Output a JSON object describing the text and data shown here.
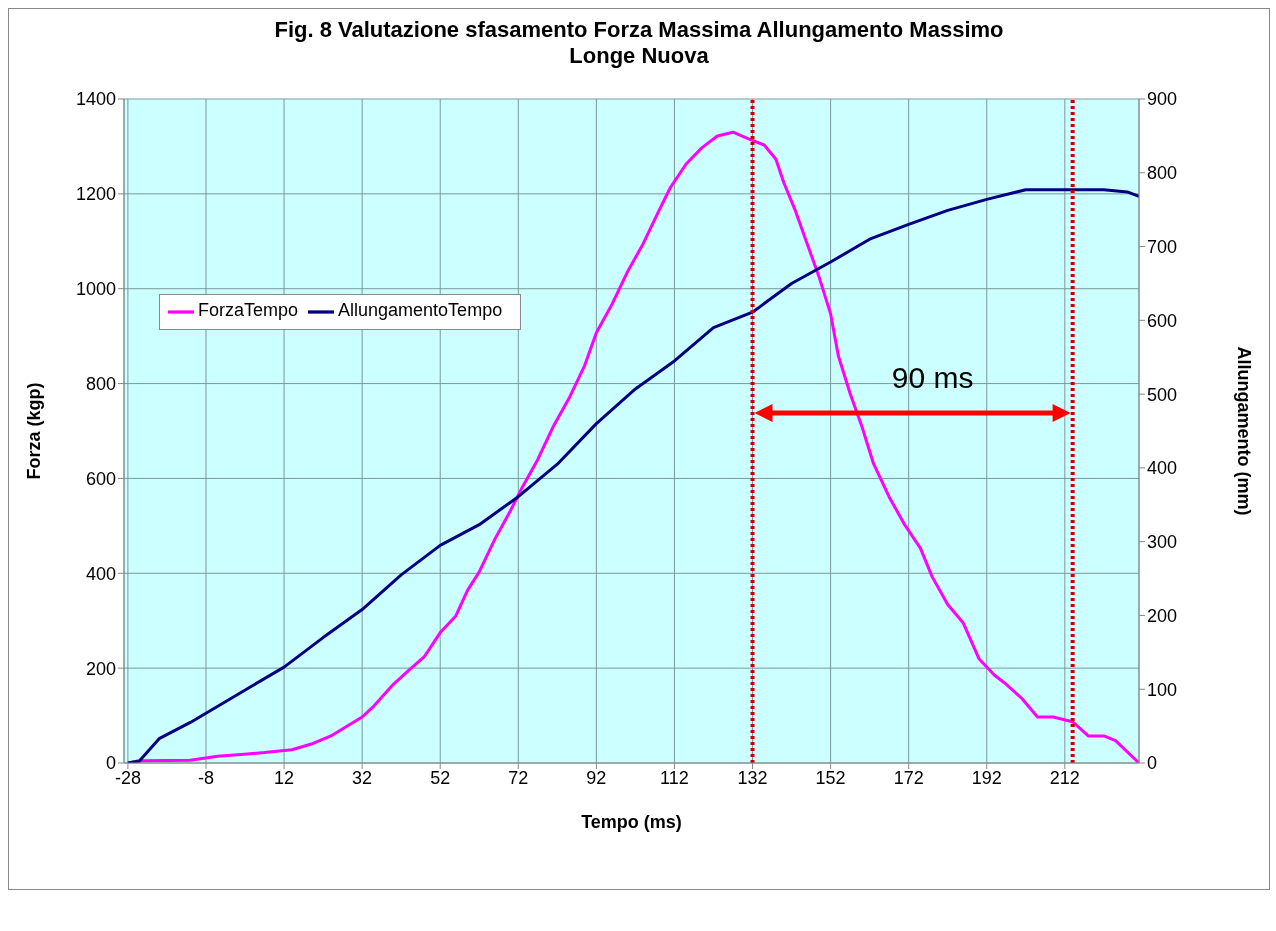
{
  "chart_data": {
    "type": "line",
    "title": "Fig. 8 Valutazione sfasamento Forza Massima Allungamento Massimo",
    "subtitle": "Longe Nuova",
    "xlabel": "Tempo (ms)",
    "ylabel": "Forza (kgp)",
    "y2label": "Allungamento (mm)",
    "xlim": [
      -29,
      231
    ],
    "xticks": [
      -28,
      -8,
      12,
      32,
      52,
      72,
      92,
      112,
      132,
      152,
      172,
      192,
      212
    ],
    "ylim": [
      0,
      1400
    ],
    "yticks": [
      0,
      200,
      400,
      600,
      800,
      1000,
      1200,
      1400
    ],
    "y2lim": [
      0,
      900
    ],
    "y2ticks": [
      0,
      100,
      200,
      300,
      400,
      500,
      600,
      700,
      800,
      900
    ],
    "grid": true,
    "legend": "top left",
    "marker": "none",
    "line_style": "solid",
    "series": [
      {
        "name": "ForzaTempo",
        "color": "#ff00ff",
        "x": [
          -28,
          -24,
          -12,
          -5,
          1,
          7,
          14,
          19,
          24,
          28,
          32,
          35,
          40,
          44,
          48,
          52,
          56,
          59,
          62,
          66,
          70,
          73,
          77,
          81,
          85,
          89,
          92,
          96,
          100,
          104,
          108,
          111,
          115,
          119,
          123,
          127,
          131,
          135,
          138,
          140,
          143,
          146,
          149,
          152,
          154,
          157,
          160,
          163,
          167,
          171,
          175,
          178,
          182,
          186,
          190,
          194,
          197,
          201,
          205,
          209,
          214,
          218,
          222,
          225,
          231
        ],
        "values": [
          0,
          5,
          6,
          14,
          18,
          22,
          28,
          40,
          57,
          77,
          97,
          120,
          166,
          196,
          225,
          275,
          310,
          364,
          403,
          472,
          532,
          581,
          640,
          710,
          769,
          838,
          907,
          967,
          1036,
          1095,
          1164,
          1214,
          1263,
          1297,
          1322,
          1330,
          1316,
          1303,
          1273,
          1224,
          1164,
          1095,
          1026,
          947,
          858,
          779,
          710,
          631,
          561,
          502,
          453,
          393,
          334,
          295,
          220,
          185,
          166,
          136,
          97,
          97,
          87,
          57,
          57,
          47,
          0
        ]
      },
      {
        "name": "AllungamentoTempo",
        "color": "#000080",
        "axis": "y2",
        "x": [
          -28,
          -25,
          -20,
          -12,
          -4,
          4,
          12,
          22,
          32,
          42,
          52,
          62,
          72,
          82,
          92,
          102,
          112,
          122,
          132,
          142,
          152,
          162,
          172,
          182,
          192,
          202,
          212,
          222,
          228,
          231
        ],
        "values": [
          0,
          3,
          33,
          55,
          80,
          105,
          130,
          170,
          208,
          255,
          295,
          323,
          361,
          405,
          460,
          507,
          545,
          590,
          611,
          650,
          679,
          710,
          730,
          749,
          764,
          777,
          777,
          777,
          774,
          768
        ]
      }
    ],
    "ref_lines": [
      {
        "axis": "x",
        "value": 132,
        "color": "#cc0000",
        "line_style": "dotted"
      },
      {
        "axis": "x",
        "value": 214,
        "color": "#cc0000",
        "line_style": "dotted"
      }
    ],
    "annotations": [
      "90 ms"
    ]
  }
}
